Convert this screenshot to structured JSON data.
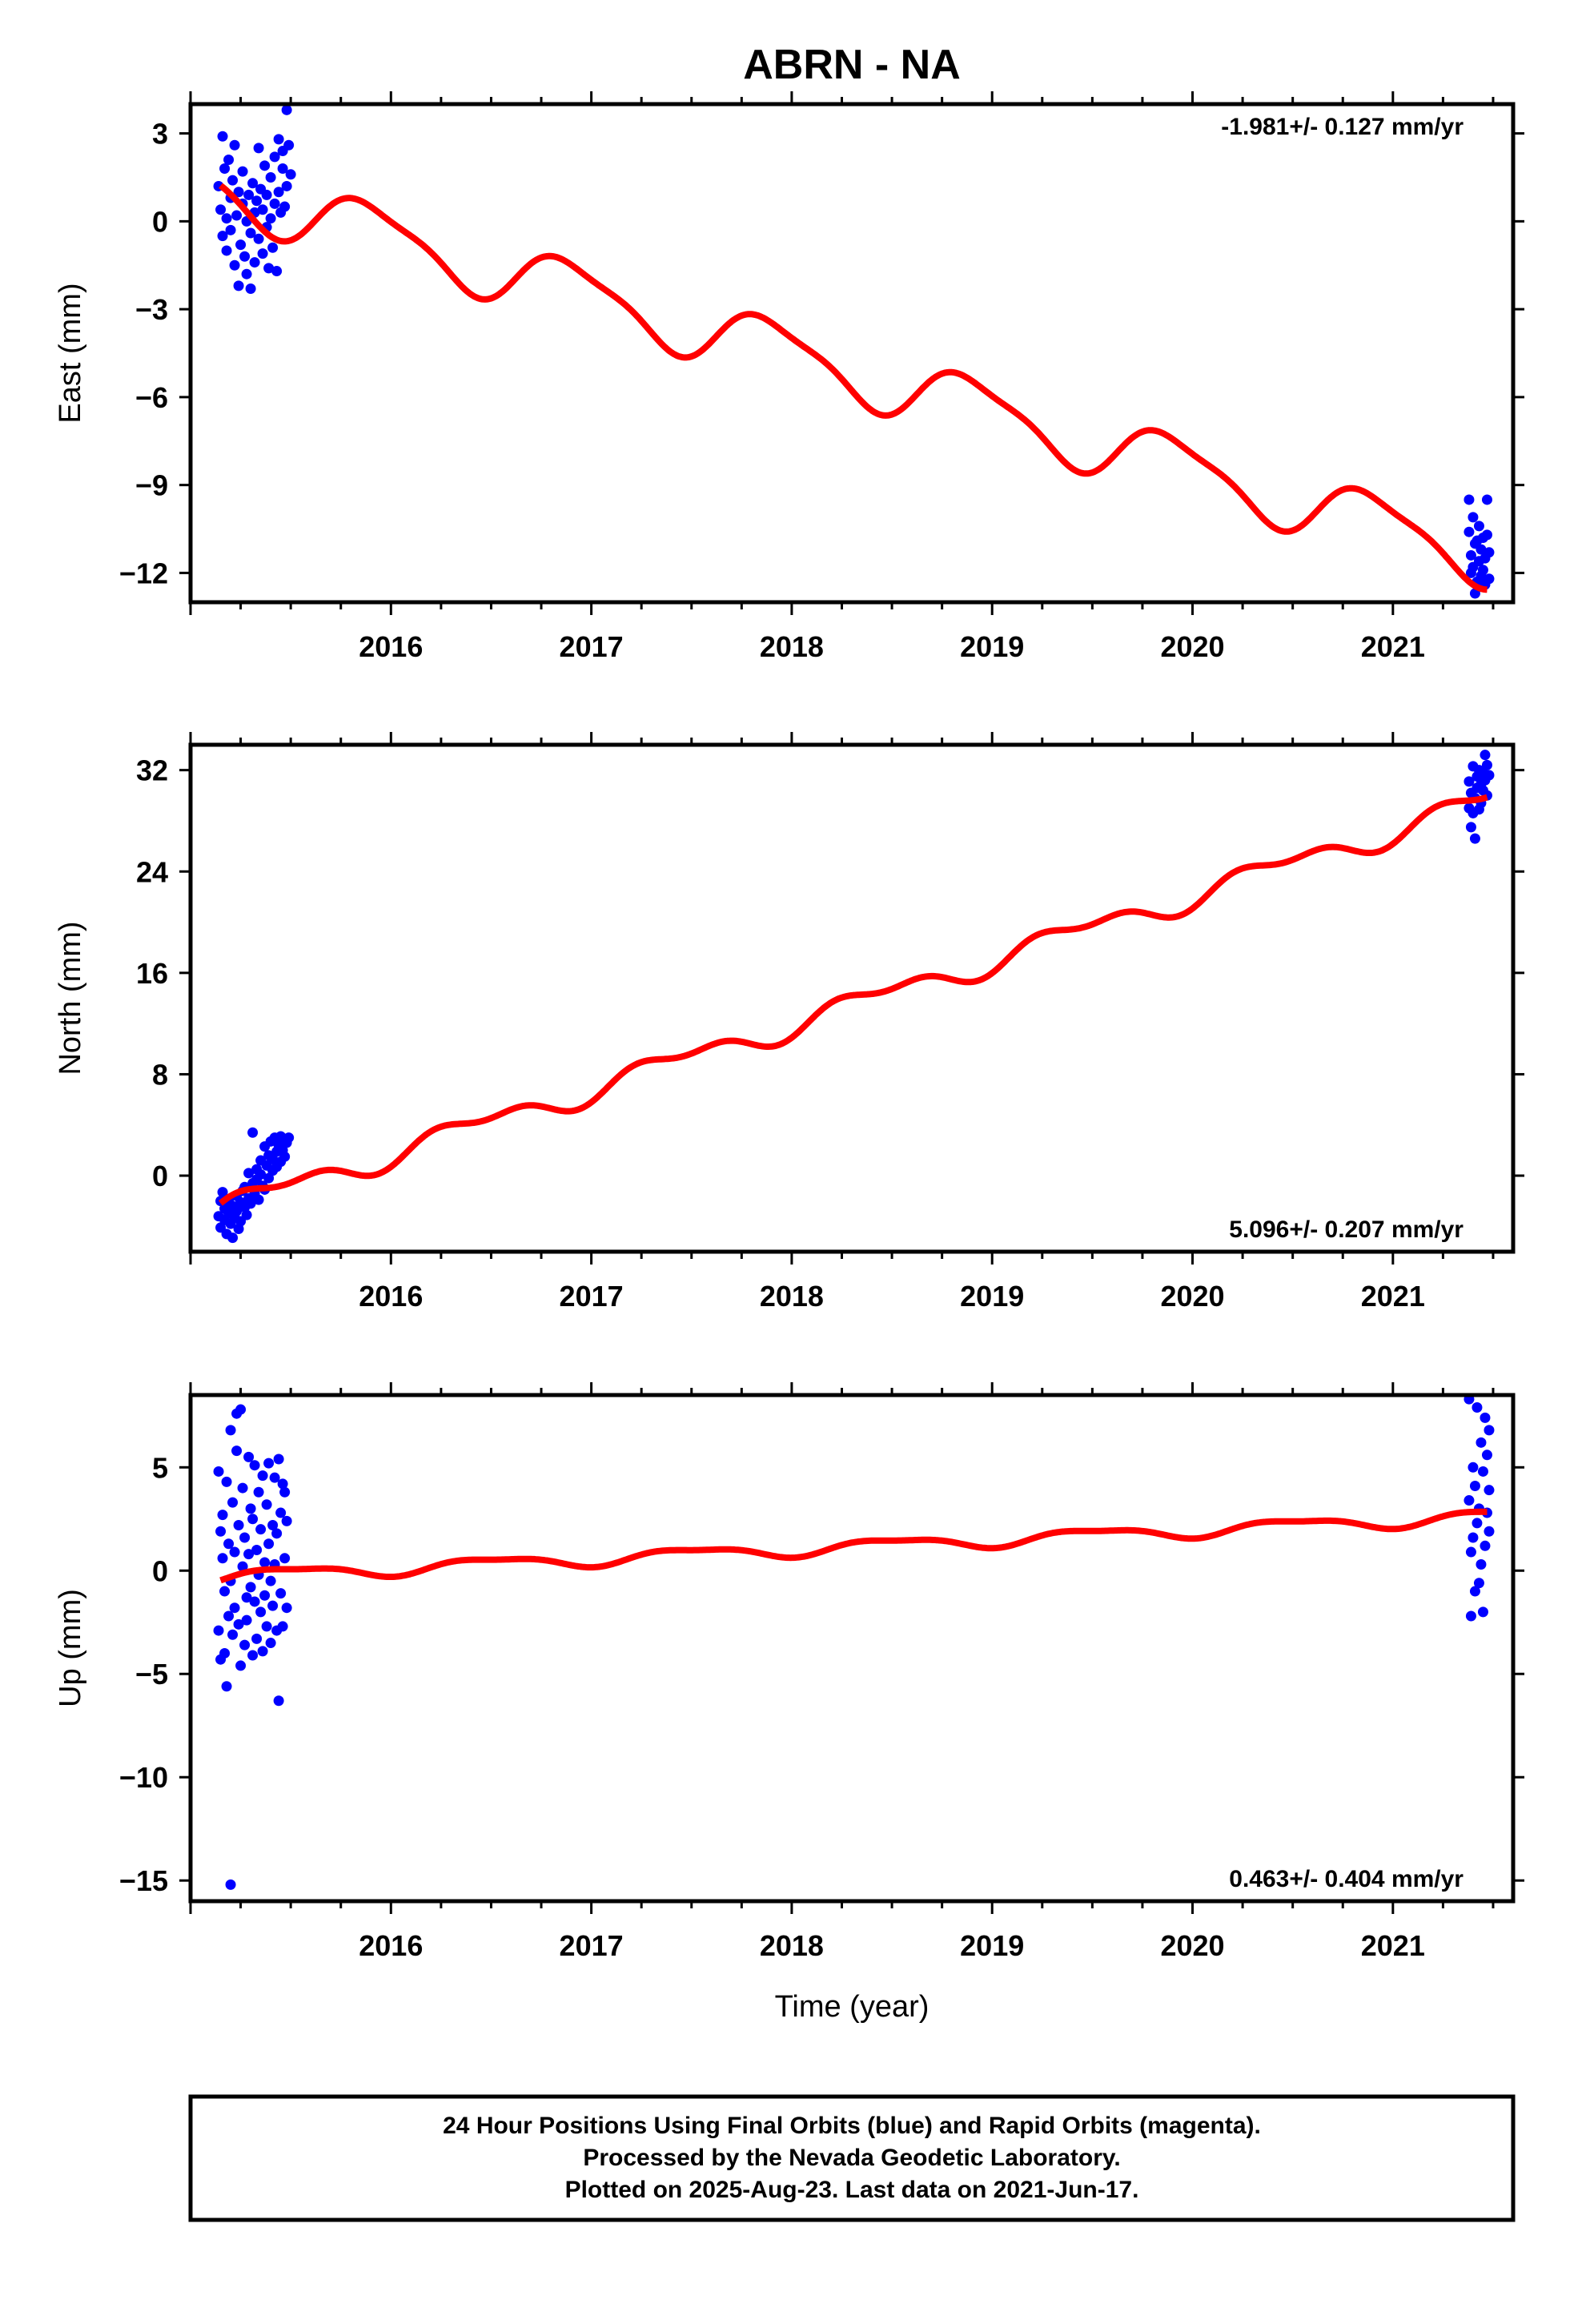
{
  "title": "ABRN - NA",
  "xlabel": "Time (year)",
  "footer": [
    "24 Hour Positions Using Final Orbits (blue) and Rapid Orbits (magenta).",
    "Processed by the Nevada Geodetic Laboratory.",
    "Plotted on 2025-Aug-23. Last data on 2021-Jun-17."
  ],
  "colors": {
    "final_orbits": "#0000ff",
    "model": "#ff0000",
    "frame": "#000000"
  },
  "chart_data": [
    {
      "type": "scatter",
      "component": "East",
      "ylabel": "East (mm)",
      "rate_label": "-1.981+/- 0.127 mm/yr",
      "rate_corner": "top-right",
      "xlim": [
        2015.0,
        2021.6
      ],
      "ylim": [
        -13,
        4
      ],
      "yticks": [
        3,
        0,
        -3,
        -6,
        -9,
        -12
      ],
      "xticks": [
        2016,
        2017,
        2018,
        2019,
        2020,
        2021
      ],
      "model": {
        "name": "trend + seasonal fit",
        "offset": 1.1,
        "rate": -1.981,
        "t0": 2015.15,
        "amp1": 1.0,
        "phase1": 3.14,
        "amp2": 0.25,
        "phase2": 0.5
      },
      "points": [
        [
          2015.14,
          1.2
        ],
        [
          2015.15,
          0.4
        ],
        [
          2015.16,
          2.9
        ],
        [
          2015.16,
          -0.5
        ],
        [
          2015.17,
          1.8
        ],
        [
          2015.18,
          0.1
        ],
        [
          2015.18,
          -1.0
        ],
        [
          2015.19,
          2.1
        ],
        [
          2015.2,
          0.8
        ],
        [
          2015.2,
          -0.3
        ],
        [
          2015.21,
          1.4
        ],
        [
          2015.22,
          -1.5
        ],
        [
          2015.22,
          2.6
        ],
        [
          2015.23,
          0.2
        ],
        [
          2015.24,
          -2.2
        ],
        [
          2015.24,
          1.0
        ],
        [
          2015.25,
          -0.8
        ],
        [
          2015.26,
          0.6
        ],
        [
          2015.26,
          1.7
        ],
        [
          2015.27,
          -1.2
        ],
        [
          2015.28,
          0.0
        ],
        [
          2015.28,
          -1.8
        ],
        [
          2015.29,
          0.9
        ],
        [
          2015.3,
          -0.4
        ],
        [
          2015.3,
          -2.3
        ],
        [
          2015.31,
          1.3
        ],
        [
          2015.32,
          0.3
        ],
        [
          2015.32,
          -1.4
        ],
        [
          2015.33,
          0.7
        ],
        [
          2015.34,
          -0.6
        ],
        [
          2015.34,
          2.5
        ],
        [
          2015.35,
          1.1
        ],
        [
          2015.36,
          -1.1
        ],
        [
          2015.36,
          0.4
        ],
        [
          2015.37,
          1.9
        ],
        [
          2015.38,
          -0.2
        ],
        [
          2015.38,
          0.9
        ],
        [
          2015.39,
          -1.6
        ],
        [
          2015.4,
          1.5
        ],
        [
          2015.4,
          0.1
        ],
        [
          2015.41,
          -0.9
        ],
        [
          2015.42,
          2.2
        ],
        [
          2015.42,
          0.6
        ],
        [
          2015.43,
          -1.7
        ],
        [
          2015.44,
          1.0
        ],
        [
          2015.44,
          2.8
        ],
        [
          2015.45,
          0.3
        ],
        [
          2015.46,
          1.8
        ],
        [
          2015.46,
          2.4
        ],
        [
          2015.47,
          0.5
        ],
        [
          2015.48,
          1.2
        ],
        [
          2015.48,
          3.8
        ],
        [
          2015.49,
          2.6
        ],
        [
          2015.5,
          1.6
        ],
        [
          2021.38,
          -9.5
        ],
        [
          2021.38,
          -10.6
        ],
        [
          2021.39,
          -11.4
        ],
        [
          2021.39,
          -12.0
        ],
        [
          2021.4,
          -10.1
        ],
        [
          2021.4,
          -11.8
        ],
        [
          2021.41,
          -12.7
        ],
        [
          2021.41,
          -11.0
        ],
        [
          2021.42,
          -10.9
        ],
        [
          2021.42,
          -12.3
        ],
        [
          2021.43,
          -11.6
        ],
        [
          2021.43,
          -10.4
        ],
        [
          2021.44,
          -12.1
        ],
        [
          2021.44,
          -11.2
        ],
        [
          2021.45,
          -10.8
        ],
        [
          2021.45,
          -11.9
        ],
        [
          2021.46,
          -12.4
        ],
        [
          2021.46,
          -11.5
        ],
        [
          2021.47,
          -9.5
        ],
        [
          2021.47,
          -10.7
        ],
        [
          2021.48,
          -11.3
        ],
        [
          2021.48,
          -12.2
        ]
      ]
    },
    {
      "type": "scatter",
      "component": "North",
      "ylabel": "North (mm)",
      "rate_label": "5.096+/- 0.207 mm/yr",
      "rate_corner": "bottom-right",
      "xlim": [
        2015.0,
        2021.6
      ],
      "ylim": [
        -6,
        34
      ],
      "yticks": [
        32,
        24,
        16,
        8,
        0
      ],
      "xticks": [
        2016,
        2017,
        2018,
        2019,
        2020,
        2021
      ],
      "model": {
        "name": "trend + seasonal fit",
        "offset": -2.6,
        "rate": 5.096,
        "t0": 2015.15,
        "amp1": 0.8,
        "phase1": 0.0,
        "amp2": 0.5,
        "phase2": 1.0
      },
      "points": [
        [
          2015.14,
          -3.2
        ],
        [
          2015.15,
          -2.0
        ],
        [
          2015.15,
          -4.1
        ],
        [
          2015.16,
          -1.3
        ],
        [
          2015.17,
          -3.5
        ],
        [
          2015.17,
          -2.6
        ],
        [
          2015.18,
          -4.6
        ],
        [
          2015.19,
          -3.0
        ],
        [
          2015.19,
          -1.9
        ],
        [
          2015.2,
          -3.8
        ],
        [
          2015.21,
          -2.4
        ],
        [
          2015.21,
          -4.9
        ],
        [
          2015.22,
          -3.3
        ],
        [
          2015.23,
          -1.6
        ],
        [
          2015.23,
          -2.8
        ],
        [
          2015.24,
          -4.2
        ],
        [
          2015.25,
          -2.1
        ],
        [
          2015.25,
          -3.6
        ],
        [
          2015.26,
          -1.2
        ],
        [
          2015.27,
          -2.5
        ],
        [
          2015.27,
          -0.9
        ],
        [
          2015.28,
          -3.1
        ],
        [
          2015.29,
          -1.8
        ],
        [
          2015.29,
          0.2
        ],
        [
          2015.3,
          -2.2
        ],
        [
          2015.31,
          -0.6
        ],
        [
          2015.31,
          3.4
        ],
        [
          2015.32,
          -1.4
        ],
        [
          2015.33,
          0.5
        ],
        [
          2015.33,
          -0.3
        ],
        [
          2015.34,
          -1.9
        ],
        [
          2015.35,
          1.2
        ],
        [
          2015.35,
          0.1
        ],
        [
          2015.36,
          -0.8
        ],
        [
          2015.37,
          2.3
        ],
        [
          2015.37,
          -1.1
        ],
        [
          2015.38,
          0.8
        ],
        [
          2015.39,
          1.6
        ],
        [
          2015.39,
          -0.2
        ],
        [
          2015.4,
          2.7
        ],
        [
          2015.41,
          0.4
        ],
        [
          2015.41,
          1.3
        ],
        [
          2015.42,
          3.0
        ],
        [
          2015.43,
          1.9
        ],
        [
          2015.43,
          0.7
        ],
        [
          2015.44,
          2.4
        ],
        [
          2015.45,
          1.1
        ],
        [
          2015.45,
          3.1
        ],
        [
          2015.46,
          2.0
        ],
        [
          2015.47,
          2.9
        ],
        [
          2015.47,
          1.5
        ],
        [
          2015.48,
          2.6
        ],
        [
          2015.49,
          3.0
        ],
        [
          2021.38,
          29.0
        ],
        [
          2021.38,
          31.1
        ],
        [
          2021.39,
          27.5
        ],
        [
          2021.39,
          30.2
        ],
        [
          2021.4,
          32.3
        ],
        [
          2021.4,
          28.6
        ],
        [
          2021.41,
          26.6
        ],
        [
          2021.41,
          29.8
        ],
        [
          2021.42,
          31.5
        ],
        [
          2021.42,
          30.6
        ],
        [
          2021.43,
          28.9
        ],
        [
          2021.43,
          32.0
        ],
        [
          2021.44,
          30.9
        ],
        [
          2021.44,
          29.4
        ],
        [
          2021.45,
          31.8
        ],
        [
          2021.45,
          30.4
        ],
        [
          2021.46,
          33.2
        ],
        [
          2021.46,
          31.2
        ],
        [
          2021.47,
          32.4
        ],
        [
          2021.47,
          30.0
        ],
        [
          2021.48,
          31.6
        ]
      ]
    },
    {
      "type": "scatter",
      "component": "Up",
      "ylabel": "Up (mm)",
      "rate_label": "0.463+/- 0.404 mm/yr",
      "rate_corner": "bottom-right",
      "xlim": [
        2015.0,
        2021.6
      ],
      "ylim": [
        -16,
        8.5
      ],
      "yticks": [
        5,
        0,
        -5,
        -10,
        -15
      ],
      "xticks": [
        2016,
        2017,
        2018,
        2019,
        2020,
        2021
      ],
      "model": {
        "name": "trend + seasonal fit",
        "offset": -0.3,
        "rate": 0.463,
        "t0": 2015.15,
        "amp1": 0.3,
        "phase1": -0.6,
        "amp2": 0.1,
        "phase2": 0.0
      },
      "points": [
        [
          2015.14,
          4.8
        ],
        [
          2015.14,
          -2.9
        ],
        [
          2015.15,
          1.9
        ],
        [
          2015.15,
          -4.3
        ],
        [
          2015.16,
          0.6
        ],
        [
          2015.16,
          2.7
        ],
        [
          2015.17,
          -1.0
        ],
        [
          2015.17,
          -4.0
        ],
        [
          2015.18,
          4.3
        ],
        [
          2015.18,
          -5.6
        ],
        [
          2015.19,
          1.3
        ],
        [
          2015.19,
          -2.2
        ],
        [
          2015.2,
          6.8
        ],
        [
          2015.2,
          -0.5
        ],
        [
          2015.21,
          3.3
        ],
        [
          2015.21,
          -3.1
        ],
        [
          2015.22,
          0.9
        ],
        [
          2015.22,
          -1.8
        ],
        [
          2015.23,
          7.6
        ],
        [
          2015.23,
          5.8
        ],
        [
          2015.24,
          -2.6
        ],
        [
          2015.24,
          2.2
        ],
        [
          2015.25,
          -4.6
        ],
        [
          2015.25,
          7.8
        ],
        [
          2015.26,
          0.2
        ],
        [
          2015.26,
          4.0
        ],
        [
          2015.27,
          -3.6
        ],
        [
          2015.27,
          1.6
        ],
        [
          2015.28,
          -1.3
        ],
        [
          2015.28,
          -2.4
        ],
        [
          2015.29,
          5.5
        ],
        [
          2015.29,
          0.8
        ],
        [
          2015.3,
          -0.8
        ],
        [
          2015.3,
          3.0
        ],
        [
          2015.31,
          -4.1
        ],
        [
          2015.31,
          2.5
        ],
        [
          2015.32,
          -1.5
        ],
        [
          2015.32,
          5.1
        ],
        [
          2015.33,
          1.0
        ],
        [
          2015.33,
          -3.3
        ],
        [
          2015.34,
          3.8
        ],
        [
          2015.34,
          -0.2
        ],
        [
          2015.35,
          -2.0
        ],
        [
          2015.35,
          2.0
        ],
        [
          2015.36,
          4.6
        ],
        [
          2015.36,
          -3.9
        ],
        [
          2015.37,
          0.4
        ],
        [
          2015.37,
          -1.2
        ],
        [
          2015.38,
          3.2
        ],
        [
          2015.38,
          -2.7
        ],
        [
          2015.39,
          1.3
        ],
        [
          2015.39,
          5.2
        ],
        [
          2015.4,
          -0.5
        ],
        [
          2015.4,
          -3.5
        ],
        [
          2015.41,
          2.2
        ],
        [
          2015.41,
          -1.7
        ],
        [
          2015.42,
          4.5
        ],
        [
          2015.42,
          0.3
        ],
        [
          2015.43,
          -2.9
        ],
        [
          2015.43,
          1.8
        ],
        [
          2015.44,
          5.4
        ],
        [
          2015.44,
          -6.3
        ],
        [
          2015.45,
          2.8
        ],
        [
          2015.45,
          -1.1
        ],
        [
          2015.46,
          -2.7
        ],
        [
          2015.46,
          4.2
        ],
        [
          2015.47,
          0.6
        ],
        [
          2015.47,
          3.8
        ],
        [
          2015.48,
          -1.8
        ],
        [
          2015.48,
          2.4
        ],
        [
          2015.2,
          -15.2
        ],
        [
          2021.38,
          8.3
        ],
        [
          2021.38,
          3.4
        ],
        [
          2021.39,
          0.9
        ],
        [
          2021.39,
          -2.2
        ],
        [
          2021.4,
          5.0
        ],
        [
          2021.4,
          1.6
        ],
        [
          2021.41,
          -1.0
        ],
        [
          2021.41,
          4.1
        ],
        [
          2021.42,
          7.9
        ],
        [
          2021.42,
          2.3
        ],
        [
          2021.43,
          -0.6
        ],
        [
          2021.43,
          3.0
        ],
        [
          2021.44,
          6.2
        ],
        [
          2021.44,
          0.3
        ],
        [
          2021.45,
          -2.0
        ],
        [
          2021.45,
          4.8
        ],
        [
          2021.46,
          1.2
        ],
        [
          2021.46,
          7.4
        ],
        [
          2021.47,
          2.8
        ],
        [
          2021.47,
          5.6
        ],
        [
          2021.48,
          3.9
        ],
        [
          2021.48,
          1.9
        ],
        [
          2021.48,
          6.8
        ]
      ]
    }
  ]
}
